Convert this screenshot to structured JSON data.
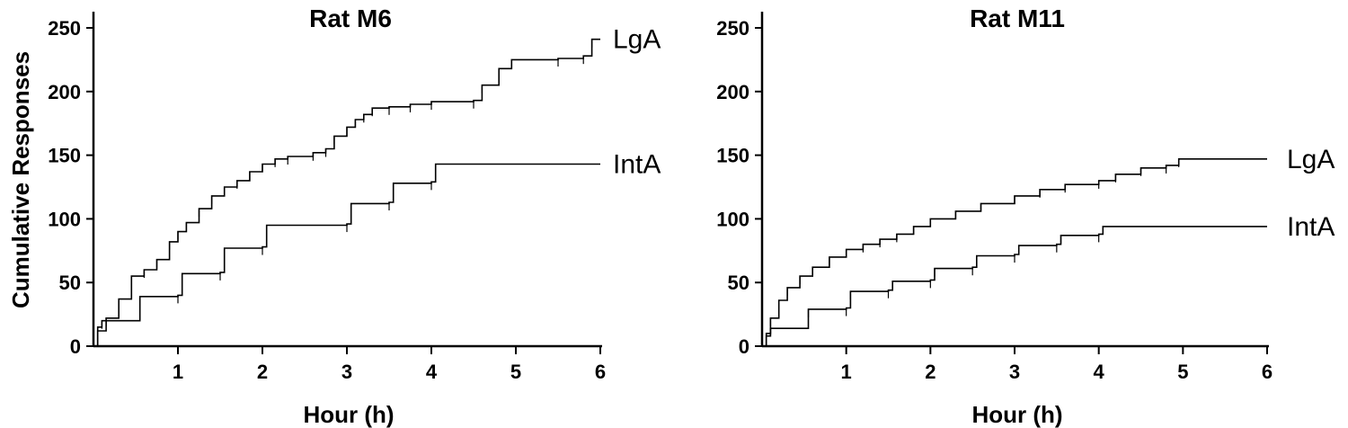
{
  "chart_data": [
    {
      "type": "line",
      "title": "Rat M6",
      "xlabel": "Hour (h)",
      "ylabel": "Cumulative Responses",
      "xlim": [
        0,
        6
      ],
      "ylim": [
        0,
        250
      ],
      "xticks": [
        "1",
        "2",
        "3",
        "4",
        "5",
        "6"
      ],
      "yticks": [
        "0",
        "50",
        "100",
        "150",
        "200",
        "250"
      ],
      "grid": false,
      "series": [
        {
          "name": "LgA",
          "x": [
            0,
            0.05,
            0.15,
            0.3,
            0.45,
            0.6,
            0.75,
            0.9,
            1.0,
            1.1,
            1.25,
            1.4,
            1.55,
            1.7,
            1.85,
            2.0,
            2.15,
            2.3,
            2.6,
            2.75,
            2.85,
            3.0,
            3.1,
            3.2,
            3.3,
            3.5,
            3.75,
            4.0,
            4.5,
            4.6,
            4.8,
            4.95,
            5.5,
            5.8,
            5.9,
            6.0
          ],
          "y": [
            0,
            12,
            22,
            37,
            55,
            60,
            68,
            82,
            90,
            97,
            108,
            118,
            125,
            130,
            137,
            143,
            147,
            149,
            152,
            155,
            165,
            172,
            178,
            182,
            187,
            188,
            190,
            192,
            193,
            205,
            218,
            225,
            226,
            228,
            241,
            241
          ]
        },
        {
          "name": "IntA",
          "x": [
            0,
            0.05,
            0.1,
            0.5,
            0.55,
            1.0,
            1.05,
            1.5,
            1.55,
            2.0,
            2.05,
            3.0,
            3.05,
            3.5,
            3.55,
            4.0,
            4.05,
            6.0
          ],
          "y": [
            0,
            15,
            20,
            20,
            39,
            40,
            57,
            58,
            77,
            78,
            95,
            96,
            112,
            113,
            128,
            129,
            143,
            143
          ]
        }
      ]
    },
    {
      "type": "line",
      "title": "Rat M11",
      "xlabel": "Hour (h)",
      "ylabel": "",
      "xlim": [
        0,
        6
      ],
      "ylim": [
        0,
        250
      ],
      "xticks": [
        "1",
        "2",
        "3",
        "4",
        "5",
        "6"
      ],
      "yticks": [
        "0",
        "50",
        "100",
        "150",
        "200",
        "250"
      ],
      "grid": false,
      "series": [
        {
          "name": "LgA",
          "x": [
            0,
            0.05,
            0.1,
            0.2,
            0.3,
            0.45,
            0.6,
            0.8,
            1.0,
            1.2,
            1.4,
            1.6,
            1.8,
            2.0,
            2.3,
            2.6,
            3.0,
            3.3,
            3.6,
            4.0,
            4.2,
            4.5,
            4.8,
            4.95,
            6.0
          ],
          "y": [
            0,
            10,
            22,
            36,
            46,
            55,
            62,
            70,
            76,
            80,
            84,
            88,
            94,
            100,
            106,
            112,
            118,
            123,
            127,
            130,
            135,
            140,
            142,
            147,
            147
          ]
        },
        {
          "name": "IntA",
          "x": [
            0,
            0.05,
            0.1,
            0.5,
            0.55,
            1.0,
            1.05,
            1.5,
            1.55,
            2.0,
            2.05,
            2.5,
            2.55,
            3.0,
            3.05,
            3.5,
            3.55,
            4.0,
            4.05,
            6.0
          ],
          "y": [
            0,
            8,
            14,
            14,
            29,
            30,
            43,
            44,
            51,
            52,
            61,
            62,
            71,
            72,
            79,
            80,
            87,
            88,
            94,
            94
          ]
        }
      ]
    }
  ]
}
